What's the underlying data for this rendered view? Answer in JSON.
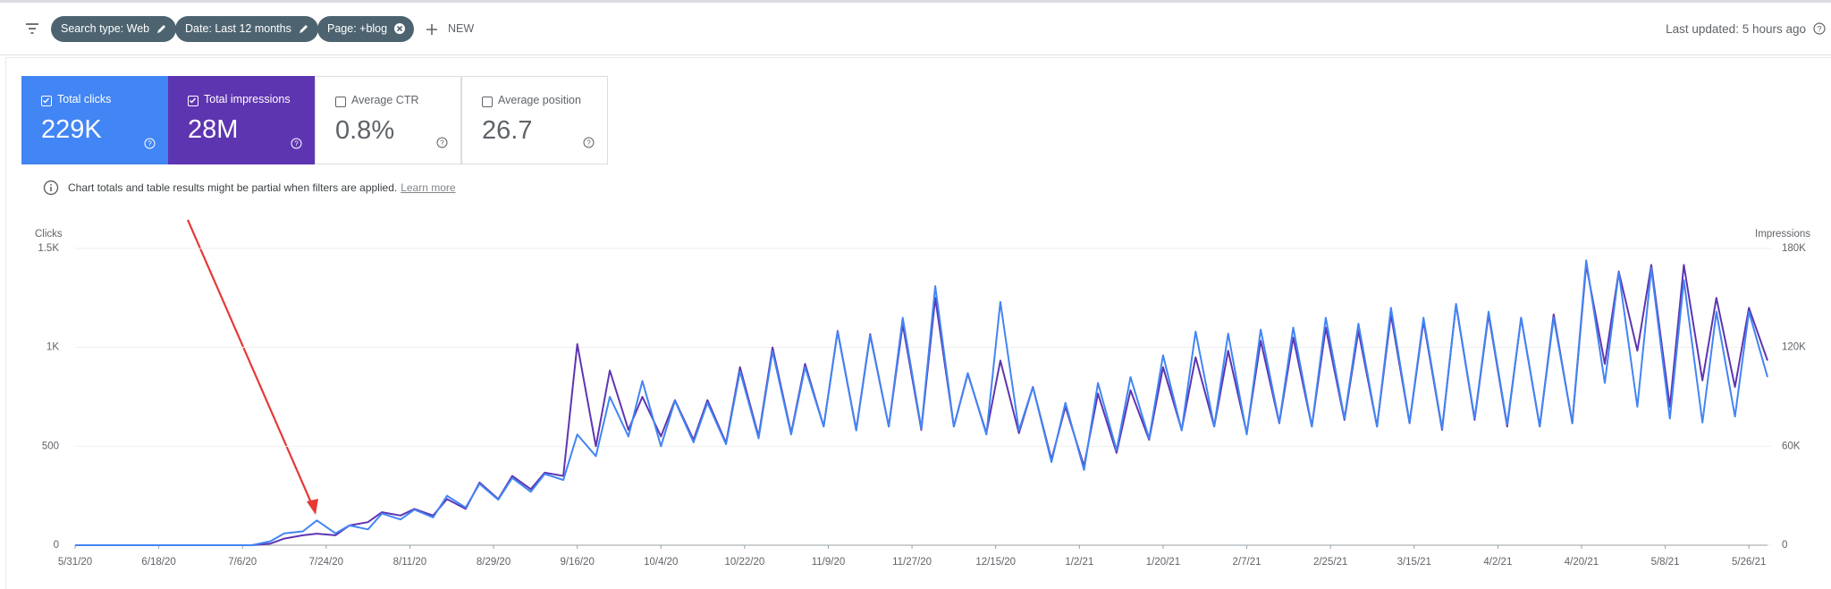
{
  "toolbar": {
    "filters": [
      "Search type: Web",
      "Date: Last 12 months",
      "Page: +blog"
    ],
    "new_button": "NEW",
    "last_updated": "Last updated: 5 hours ago"
  },
  "metrics": [
    {
      "label": "Total clicks",
      "value": "229K",
      "checked": true,
      "color": "#4285f4"
    },
    {
      "label": "Total impressions",
      "value": "28M",
      "checked": true,
      "color": "#5e35b1"
    },
    {
      "label": "Average CTR",
      "value": "0.8%",
      "checked": false,
      "color": "#ffffff"
    },
    {
      "label": "Average position",
      "value": "26.7",
      "checked": false,
      "color": "#ffffff"
    }
  ],
  "notice": {
    "text": "Chart totals and table results might be partial when filters are applied.",
    "link": "Learn more"
  },
  "chart_data": {
    "type": "line",
    "ylabel": "Clicks",
    "y2label": "Impressions",
    "x": [
      "5/31/20",
      "6/3/20",
      "6/7/20",
      "6/10/20",
      "6/14/20",
      "6/17/20",
      "6/21/20",
      "6/24/20",
      "6/28/20",
      "7/1/20",
      "7/5/20",
      "7/8/20",
      "7/12/20",
      "7/15/20",
      "7/19/20",
      "7/22/20",
      "7/26/20",
      "7/29/20",
      "8/2/20",
      "8/5/20",
      "8/9/20",
      "8/12/20",
      "8/16/20",
      "8/19/20",
      "8/23/20",
      "8/26/20",
      "8/30/20",
      "9/2/20",
      "9/6/20",
      "9/9/20",
      "9/13/20",
      "9/16/20",
      "9/20/20",
      "9/23/20",
      "9/27/20",
      "9/30/20",
      "10/4/20",
      "10/7/20",
      "10/11/20",
      "10/14/20",
      "10/18/20",
      "10/21/20",
      "10/25/20",
      "10/28/20",
      "11/1/20",
      "11/4/20",
      "11/8/20",
      "11/11/20",
      "11/15/20",
      "11/18/20",
      "11/22/20",
      "11/25/20",
      "11/29/20",
      "12/2/20",
      "12/6/20",
      "12/9/20",
      "12/13/20",
      "12/16/20",
      "12/20/20",
      "12/23/20",
      "12/27/20",
      "12/30/20",
      "1/3/21",
      "1/6/21",
      "1/10/21",
      "1/13/21",
      "1/17/21",
      "1/20/21",
      "1/24/21",
      "1/27/21",
      "1/31/21",
      "2/3/21",
      "2/7/21",
      "2/10/21",
      "2/14/21",
      "2/17/21",
      "2/21/21",
      "2/24/21",
      "2/28/21",
      "3/3/21",
      "3/7/21",
      "3/10/21",
      "3/14/21",
      "3/17/21",
      "3/21/21",
      "3/24/21",
      "3/28/21",
      "3/31/21",
      "4/4/21",
      "4/7/21",
      "4/11/21",
      "4/14/21",
      "4/18/21",
      "4/21/21",
      "4/25/21",
      "4/28/21",
      "5/2/21",
      "5/5/21",
      "5/9/21",
      "5/12/21",
      "5/16/21",
      "5/19/21",
      "5/23/21",
      "5/26/21",
      "5/30/21"
    ],
    "series": [
      {
        "color": "#4285f4",
        "axis": "y",
        "values": [
          0,
          0,
          0,
          0,
          0,
          0,
          0,
          0,
          0,
          0,
          0,
          0,
          20,
          60,
          70,
          125,
          60,
          100,
          80,
          160,
          130,
          180,
          140,
          250,
          190,
          310,
          230,
          340,
          270,
          360,
          330,
          560,
          450,
          750,
          550,
          830,
          500,
          730,
          520,
          720,
          510,
          880,
          540,
          980,
          560,
          900,
          600,
          1080,
          580,
          1060,
          600,
          1150,
          590,
          1310,
          600,
          870,
          560,
          1230,
          580,
          800,
          420,
          720,
          380,
          820,
          480,
          850,
          540,
          960,
          580,
          1080,
          600,
          1070,
          560,
          1090,
          620,
          1100,
          600,
          1150,
          640,
          1120,
          600,
          1200,
          620,
          1150,
          590,
          1220,
          640,
          1180,
          610,
          1150,
          600,
          1150,
          620,
          1440,
          820,
          1380,
          700,
          1400,
          640,
          1340,
          620,
          1180,
          650,
          1180,
          850
        ]
      },
      {
        "color": "#5e35b1",
        "axis": "y2",
        "values": [
          0,
          0,
          0,
          0,
          0,
          0,
          0,
          0,
          0,
          0,
          0,
          0,
          1000,
          4000,
          6000,
          7000,
          6000,
          12000,
          14000,
          20000,
          18000,
          22000,
          18000,
          28000,
          22000,
          38000,
          28000,
          42000,
          34000,
          44000,
          42000,
          122000,
          60000,
          106000,
          70000,
          90000,
          66000,
          88000,
          64000,
          88000,
          62000,
          108000,
          66000,
          120000,
          68000,
          110000,
          72000,
          130000,
          70000,
          128000,
          72000,
          134000,
          70000,
          150000,
          72000,
          104000,
          68000,
          112000,
          68000,
          96000,
          52000,
          84000,
          48000,
          92000,
          56000,
          94000,
          64000,
          108000,
          70000,
          114000,
          72000,
          118000,
          68000,
          124000,
          74000,
          126000,
          72000,
          132000,
          76000,
          130000,
          72000,
          140000,
          74000,
          136000,
          70000,
          146000,
          76000,
          140000,
          72000,
          138000,
          72000,
          140000,
          74000,
          170000,
          110000,
          166000,
          118000,
          170000,
          84000,
          170000,
          100000,
          150000,
          96000,
          144000,
          112000
        ]
      }
    ],
    "xticks": [
      "5/31/20",
      "6/18/20",
      "7/6/20",
      "7/24/20",
      "8/11/20",
      "8/29/20",
      "9/16/20",
      "10/4/20",
      "10/22/20",
      "11/9/20",
      "11/27/20",
      "12/15/20",
      "1/2/21",
      "1/20/21",
      "2/7/21",
      "2/25/21",
      "3/15/21",
      "4/2/21",
      "4/20/21",
      "5/8/21",
      "5/26/21"
    ],
    "ylim": [
      0,
      1500
    ],
    "yticks": [
      0,
      500,
      {
        "value": 1000,
        "label": "1K"
      },
      {
        "value": 1500,
        "label": "1.5K"
      }
    ],
    "y2lim": [
      0,
      180000
    ],
    "y2ticks": [
      0,
      {
        "value": 60000,
        "label": "60K"
      },
      {
        "value": 120000,
        "label": "120K"
      },
      {
        "value": 180000,
        "label": "180K"
      }
    ],
    "grid": true
  }
}
